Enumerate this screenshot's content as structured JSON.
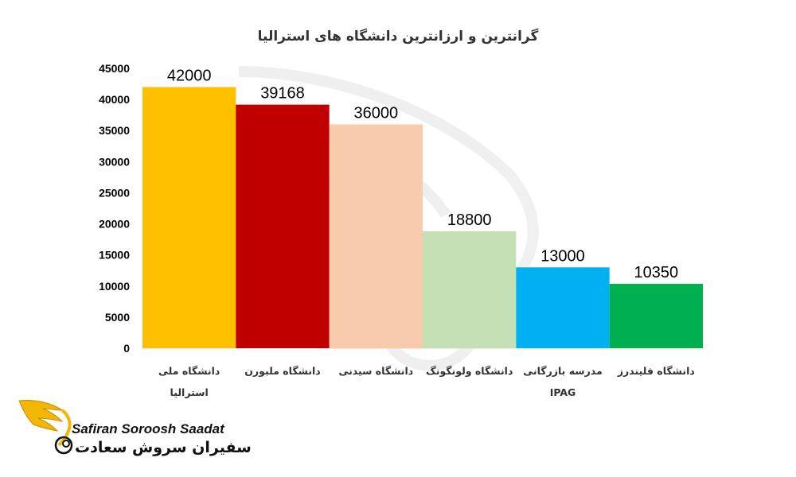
{
  "chart_data": {
    "type": "bar",
    "title": "گرانترین و ارزانترین دانشگاه های استرالیا",
    "xlabel": "",
    "ylabel": "",
    "ylim": [
      0,
      45000
    ],
    "yticks": [
      0,
      5000,
      10000,
      15000,
      20000,
      25000,
      30000,
      35000,
      40000,
      45000
    ],
    "grid": false,
    "legend": "none",
    "categories": [
      [
        "دانشگاه ملی",
        "استرالیا"
      ],
      [
        "دانشگاه ملبورن"
      ],
      [
        "دانشگاه سیدنی"
      ],
      [
        "دانشگاه ولونگونگ"
      ],
      [
        "مدرسه بازرگانی",
        "IPAG"
      ],
      [
        "دانشگاه فلیندرز"
      ]
    ],
    "values": [
      42000,
      39168,
      36000,
      18800,
      13000,
      10350
    ],
    "colors": [
      "#FFC000",
      "#C00000",
      "#F8CBAD",
      "#C5E0B4",
      "#00B0F0",
      "#00B050"
    ]
  },
  "logo": {
    "name_en": "Safiran Soroosh Saadat",
    "name_fa": "سفیران سروش سعادت",
    "wing_color": "#F2B705",
    "wing_dark": "#C98A00"
  }
}
